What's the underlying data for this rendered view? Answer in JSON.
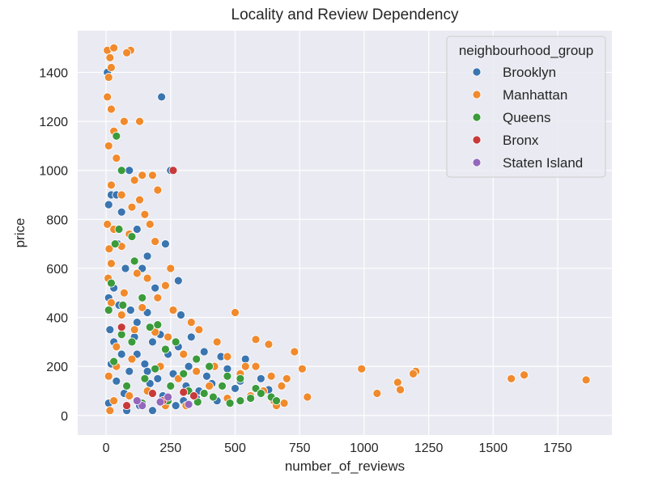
{
  "chart_data": {
    "type": "scatter",
    "title": "Locality and Review Dependency",
    "xlabel": "number_of_reviews",
    "ylabel": "price",
    "xlim": [
      -110,
      1960
    ],
    "ylim": [
      -80,
      1570
    ],
    "xticks": [
      0,
      250,
      500,
      750,
      1000,
      1250,
      1500,
      1750
    ],
    "yticks": [
      0,
      200,
      400,
      600,
      800,
      1000,
      1200,
      1400
    ],
    "grid": true,
    "legend": {
      "title": "neighbourhood_group",
      "position": "top-right"
    },
    "series": [
      {
        "name": "Brooklyn",
        "color": "#3a75b0",
        "points": [
          [
            5,
            1400
          ],
          [
            215,
            1300
          ],
          [
            250,
            1000
          ],
          [
            90,
            1000
          ],
          [
            20,
            900
          ],
          [
            40,
            900
          ],
          [
            10,
            860
          ],
          [
            60,
            830
          ],
          [
            120,
            760
          ],
          [
            230,
            700
          ],
          [
            160,
            650
          ],
          [
            75,
            600
          ],
          [
            280,
            550
          ],
          [
            140,
            600
          ],
          [
            190,
            520
          ],
          [
            10,
            480
          ],
          [
            50,
            450
          ],
          [
            95,
            430
          ],
          [
            160,
            420
          ],
          [
            290,
            410
          ],
          [
            120,
            380
          ],
          [
            60,
            360
          ],
          [
            210,
            330
          ],
          [
            330,
            320
          ],
          [
            30,
            300
          ],
          [
            180,
            300
          ],
          [
            280,
            280
          ],
          [
            380,
            260
          ],
          [
            120,
            250
          ],
          [
            240,
            250
          ],
          [
            445,
            240
          ],
          [
            540,
            230
          ],
          [
            20,
            210
          ],
          [
            150,
            210
          ],
          [
            320,
            200
          ],
          [
            470,
            190
          ],
          [
            90,
            180
          ],
          [
            260,
            170
          ],
          [
            390,
            160
          ],
          [
            600,
            150
          ],
          [
            40,
            140
          ],
          [
            170,
            130
          ],
          [
            310,
            120
          ],
          [
            500,
            110
          ],
          [
            630,
            105
          ],
          [
            70,
            90
          ],
          [
            220,
            80
          ],
          [
            350,
            70
          ],
          [
            430,
            60
          ],
          [
            10,
            50
          ],
          [
            130,
            40
          ],
          [
            270,
            40
          ],
          [
            80,
            20
          ],
          [
            180,
            20
          ],
          [
            360,
            100
          ],
          [
            410,
            130
          ],
          [
            520,
            140
          ],
          [
            200,
            150
          ],
          [
            60,
            250
          ],
          [
            110,
            320
          ],
          [
            15,
            350
          ],
          [
            30,
            520
          ],
          [
            45,
            700
          ],
          [
            160,
            180
          ],
          [
            300,
            60
          ]
        ]
      },
      {
        "name": "Manhattan",
        "color": "#f08a2c",
        "points": [
          [
            5,
            1490
          ],
          [
            30,
            1500
          ],
          [
            95,
            1490
          ],
          [
            80,
            1480
          ],
          [
            15,
            1460
          ],
          [
            20,
            1420
          ],
          [
            10,
            1380
          ],
          [
            5,
            1300
          ],
          [
            20,
            1250
          ],
          [
            130,
            1200
          ],
          [
            70,
            1200
          ],
          [
            30,
            1160
          ],
          [
            10,
            1100
          ],
          [
            40,
            1050
          ],
          [
            140,
            980
          ],
          [
            180,
            980
          ],
          [
            110,
            960
          ],
          [
            200,
            920
          ],
          [
            20,
            940
          ],
          [
            60,
            900
          ],
          [
            130,
            880
          ],
          [
            100,
            850
          ],
          [
            150,
            820
          ],
          [
            170,
            780
          ],
          [
            30,
            760
          ],
          [
            90,
            740
          ],
          [
            190,
            710
          ],
          [
            60,
            690
          ],
          [
            250,
            600
          ],
          [
            20,
            620
          ],
          [
            120,
            580
          ],
          [
            160,
            560
          ],
          [
            230,
            530
          ],
          [
            70,
            500
          ],
          [
            200,
            480
          ],
          [
            20,
            460
          ],
          [
            140,
            440
          ],
          [
            260,
            430
          ],
          [
            60,
            410
          ],
          [
            330,
            380
          ],
          [
            500,
            420
          ],
          [
            110,
            350
          ],
          [
            190,
            340
          ],
          [
            360,
            350
          ],
          [
            240,
            320
          ],
          [
            580,
            310
          ],
          [
            630,
            290
          ],
          [
            430,
            300
          ],
          [
            730,
            260
          ],
          [
            40,
            280
          ],
          [
            300,
            250
          ],
          [
            470,
            240
          ],
          [
            540,
            200
          ],
          [
            760,
            190
          ],
          [
            990,
            190
          ],
          [
            1200,
            180
          ],
          [
            1190,
            170
          ],
          [
            1620,
            165
          ],
          [
            1570,
            150
          ],
          [
            1860,
            145
          ],
          [
            1130,
            135
          ],
          [
            1140,
            105
          ],
          [
            1050,
            90
          ],
          [
            640,
            160
          ],
          [
            700,
            150
          ],
          [
            680,
            120
          ],
          [
            610,
            100
          ],
          [
            560,
            80
          ],
          [
            650,
            60
          ],
          [
            660,
            40
          ],
          [
            690,
            50
          ],
          [
            780,
            75
          ],
          [
            580,
            200
          ],
          [
            520,
            170
          ],
          [
            400,
            120
          ],
          [
            420,
            200
          ],
          [
            350,
            180
          ],
          [
            280,
            150
          ],
          [
            210,
            200
          ],
          [
            100,
            230
          ],
          [
            40,
            200
          ],
          [
            10,
            160
          ],
          [
            160,
            100
          ],
          [
            90,
            80
          ],
          [
            30,
            60
          ],
          [
            230,
            40
          ],
          [
            310,
            40
          ],
          [
            470,
            70
          ],
          [
            380,
            90
          ],
          [
            15,
            20
          ],
          [
            5,
            780
          ],
          [
            12,
            680
          ],
          [
            8,
            560
          ]
        ]
      },
      {
        "name": "Queens",
        "color": "#3b9b3b",
        "points": [
          [
            40,
            1140
          ],
          [
            60,
            1000
          ],
          [
            50,
            760
          ],
          [
            100,
            730
          ],
          [
            35,
            700
          ],
          [
            110,
            630
          ],
          [
            20,
            540
          ],
          [
            140,
            480
          ],
          [
            65,
            450
          ],
          [
            200,
            370
          ],
          [
            170,
            360
          ],
          [
            100,
            300
          ],
          [
            270,
            300
          ],
          [
            230,
            270
          ],
          [
            350,
            230
          ],
          [
            400,
            200
          ],
          [
            190,
            190
          ],
          [
            300,
            170
          ],
          [
            470,
            160
          ],
          [
            520,
            150
          ],
          [
            450,
            120
          ],
          [
            580,
            110
          ],
          [
            600,
            90
          ],
          [
            560,
            70
          ],
          [
            520,
            60
          ],
          [
            480,
            50
          ],
          [
            640,
            75
          ],
          [
            660,
            60
          ],
          [
            140,
            50
          ],
          [
            240,
            60
          ],
          [
            380,
            90
          ],
          [
            320,
            100
          ],
          [
            80,
            120
          ],
          [
            30,
            220
          ],
          [
            60,
            330
          ],
          [
            10,
            430
          ],
          [
            150,
            150
          ],
          [
            250,
            120
          ],
          [
            415,
            75
          ],
          [
            355,
            55
          ]
        ]
      },
      {
        "name": "Bronx",
        "color": "#c83a3a",
        "points": [
          [
            260,
            1000
          ],
          [
            60,
            360
          ],
          [
            340,
            80
          ],
          [
            180,
            90
          ],
          [
            300,
            95
          ],
          [
            80,
            40
          ],
          [
            220,
            60
          ]
        ]
      },
      {
        "name": "Staten Island",
        "color": "#9467bd",
        "points": [
          [
            210,
            55
          ],
          [
            240,
            75
          ],
          [
            140,
            40
          ],
          [
            120,
            60
          ],
          [
            320,
            45
          ]
        ]
      }
    ]
  }
}
